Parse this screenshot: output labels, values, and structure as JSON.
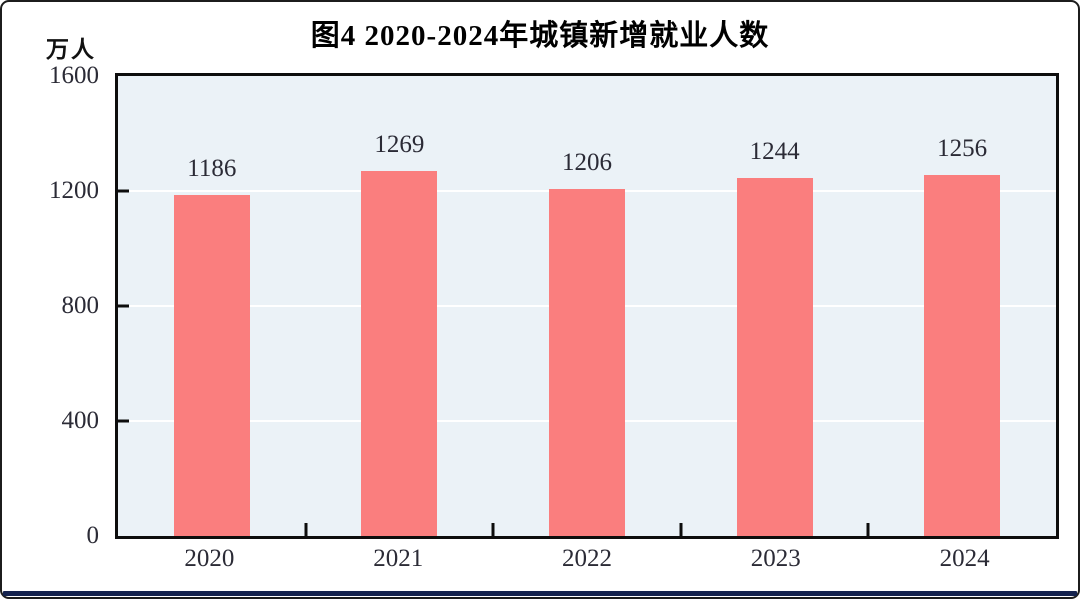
{
  "page": {
    "frame_border_color": "#1c1c1c",
    "footer_rule_color": "#14224E"
  },
  "chart_data": {
    "type": "bar",
    "title": "图4  2020-2024年城镇新增就业人数",
    "unit_label": "万人",
    "categories": [
      "2020",
      "2021",
      "2022",
      "2023",
      "2024"
    ],
    "values": [
      1186,
      1269,
      1206,
      1244,
      1256
    ],
    "ylim": [
      0,
      1600
    ],
    "yticks": [
      0,
      400,
      800,
      1200,
      1600
    ],
    "grid": true,
    "legend_position": "none",
    "colors": {
      "bar": "#FA7E7E",
      "plot_background": "#EBF2F7",
      "gridline": "#FFFFFF",
      "axis": "#0D0D0D",
      "tick_label": "#2B2B36",
      "title": "#000000"
    }
  }
}
